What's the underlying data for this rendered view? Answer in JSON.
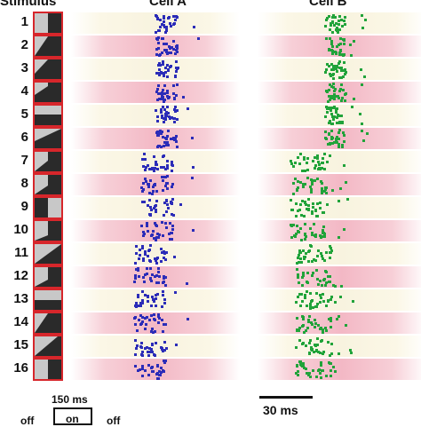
{
  "headers": {
    "stimulus": "Stimulus",
    "cell_a": "Cell A",
    "cell_b": "Cell B"
  },
  "rows": [
    {
      "label": "1"
    },
    {
      "label": "2"
    },
    {
      "label": "3"
    },
    {
      "label": "4"
    },
    {
      "label": "5"
    },
    {
      "label": "6"
    },
    {
      "label": "7"
    },
    {
      "label": "8"
    },
    {
      "label": "9"
    },
    {
      "label": "10"
    },
    {
      "label": "11"
    },
    {
      "label": "12"
    },
    {
      "label": "13"
    },
    {
      "label": "14"
    },
    {
      "label": "15"
    },
    {
      "label": "16"
    }
  ],
  "scale_bar": {
    "label": "30 ms"
  },
  "protocol": {
    "duration_label": "150 ms",
    "off_label": "off",
    "on_label": "on"
  },
  "colors": {
    "cell_a_spikes": "#2b2cb8",
    "cell_b_spikes": "#21a33a",
    "stimulus_border": "#d7262b",
    "band_odd": "#f8f3df",
    "band_even": "#f3b8c5"
  }
}
